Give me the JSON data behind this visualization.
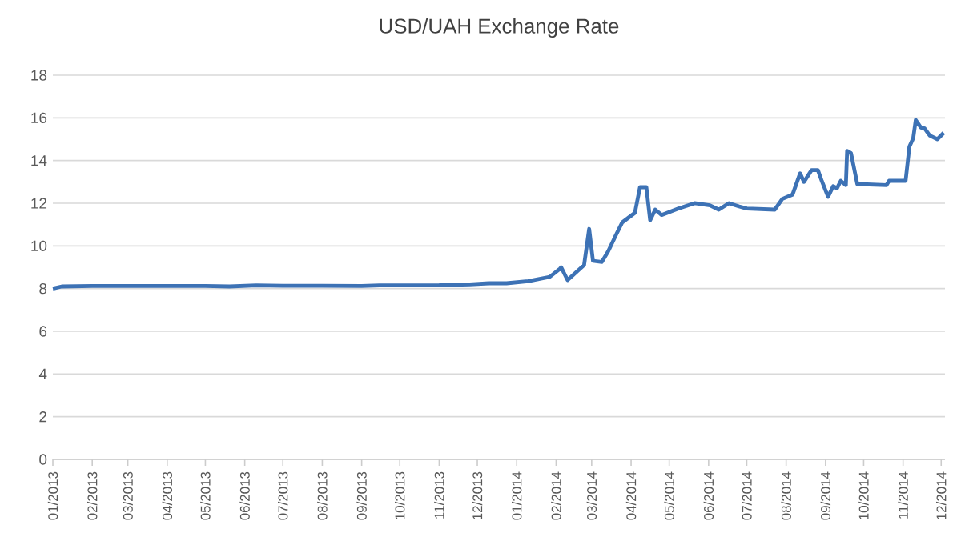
{
  "chart_data": {
    "type": "line",
    "title": "USD/UAH Exchange Rate",
    "x": [
      "2013-01-01",
      "2013-01-08",
      "2013-02-01",
      "2013-03-01",
      "2013-04-01",
      "2013-05-01",
      "2013-05-20",
      "2013-06-10",
      "2013-07-01",
      "2013-08-01",
      "2013-09-01",
      "2013-09-15",
      "2013-10-01",
      "2013-11-01",
      "2013-11-25",
      "2013-12-10",
      "2013-12-24",
      "2014-01-10",
      "2014-01-27",
      "2014-02-04",
      "2014-02-05",
      "2014-02-10",
      "2014-02-23",
      "2014-02-27",
      "2014-03-02",
      "2014-03-09",
      "2014-03-14",
      "2014-03-20",
      "2014-03-25",
      "2014-04-04",
      "2014-04-08",
      "2014-04-13",
      "2014-04-16",
      "2014-04-20",
      "2014-04-25",
      "2014-05-08",
      "2014-05-21",
      "2014-06-02",
      "2014-06-09",
      "2014-06-17",
      "2014-06-25",
      "2014-07-01",
      "2014-07-23",
      "2014-07-29",
      "2014-08-06",
      "2014-08-12",
      "2014-08-15",
      "2014-08-21",
      "2014-08-26",
      "2014-08-29",
      "2014-09-03",
      "2014-09-07",
      "2014-09-10",
      "2014-09-13",
      "2014-09-17",
      "2014-09-18",
      "2014-09-21",
      "2014-09-26",
      "2014-10-19",
      "2014-10-21",
      "2014-11-03",
      "2014-11-06",
      "2014-11-09",
      "2014-11-11",
      "2014-11-15",
      "2014-11-18",
      "2014-11-22",
      "2014-11-28",
      "2014-12-03"
    ],
    "series": [
      {
        "color": "#3d72b5",
        "values": [
          8.0,
          8.1,
          8.12,
          8.12,
          8.12,
          8.12,
          8.1,
          8.15,
          8.13,
          8.13,
          8.12,
          8.15,
          8.15,
          8.16,
          8.2,
          8.25,
          8.25,
          8.35,
          8.55,
          8.93,
          9.0,
          8.4,
          9.1,
          10.8,
          9.3,
          9.25,
          9.75,
          10.5,
          11.1,
          11.55,
          12.75,
          12.75,
          11.2,
          11.7,
          11.45,
          11.75,
          12.0,
          11.9,
          11.7,
          12.0,
          11.85,
          11.75,
          11.7,
          12.2,
          12.4,
          13.4,
          13.0,
          13.55,
          13.55,
          13.05,
          12.3,
          12.8,
          12.7,
          13.05,
          12.85,
          14.45,
          14.35,
          12.9,
          12.85,
          13.05,
          13.05,
          14.65,
          15.05,
          15.9,
          15.55,
          15.5,
          15.17,
          15.0,
          15.3
        ]
      }
    ],
    "xlim": [
      "2013-01-01",
      "2014-12-04"
    ],
    "xticks": [
      {
        "value": "2013-01-01",
        "label": "01/2013"
      },
      {
        "value": "2013-02-01",
        "label": "02/2013"
      },
      {
        "value": "2013-03-01",
        "label": "03/2013"
      },
      {
        "value": "2013-04-01",
        "label": "04/2013"
      },
      {
        "value": "2013-05-01",
        "label": "05/2013"
      },
      {
        "value": "2013-06-01",
        "label": "06/2013"
      },
      {
        "value": "2013-07-01",
        "label": "07/2013"
      },
      {
        "value": "2013-08-01",
        "label": "08/2013"
      },
      {
        "value": "2013-09-01",
        "label": "09/2013"
      },
      {
        "value": "2013-10-01",
        "label": "10/2013"
      },
      {
        "value": "2013-11-01",
        "label": "11/2013"
      },
      {
        "value": "2013-12-01",
        "label": "12/2013"
      },
      {
        "value": "2014-01-01",
        "label": "01/2014"
      },
      {
        "value": "2014-02-01",
        "label": "02/2014"
      },
      {
        "value": "2014-03-01",
        "label": "03/2014"
      },
      {
        "value": "2014-04-01",
        "label": "04/2014"
      },
      {
        "value": "2014-05-01",
        "label": "05/2014"
      },
      {
        "value": "2014-06-01",
        "label": "06/2014"
      },
      {
        "value": "2014-07-01",
        "label": "07/2014"
      },
      {
        "value": "2014-08-01",
        "label": "08/2014"
      },
      {
        "value": "2014-09-01",
        "label": "09/2014"
      },
      {
        "value": "2014-10-01",
        "label": "10/2014"
      },
      {
        "value": "2014-11-01",
        "label": "11/2014"
      },
      {
        "value": "2014-12-01",
        "label": "12/2014"
      }
    ],
    "ylim": [
      0,
      18
    ],
    "yticks": [
      0,
      2,
      4,
      6,
      8,
      10,
      12,
      14,
      16,
      18
    ],
    "grid": "y"
  }
}
